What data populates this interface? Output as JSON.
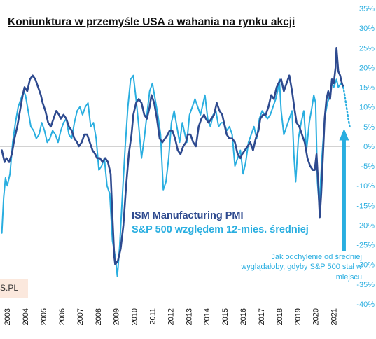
{
  "title": "Koniunktura w przemyśle USA a wahania na rynku akcji",
  "legend": {
    "ism": "ISM Manufacturing  PMI",
    "sp": "S&P 500 względem 12-mies. średniej"
  },
  "annotation": "Jak odchylenie od średniej wyglądałoby, gdyby S&P 500 stał w miejscu",
  "brand_text": "S.PL",
  "colors": {
    "ism": "#2e4a8f",
    "sp": "#29aee0",
    "annotation": "#29aee0"
  },
  "chart_data": {
    "type": "line",
    "x_start": 2002.75,
    "x_end": 2021.95,
    "x_ticks": [
      "2003",
      "2004",
      "2005",
      "2006",
      "2007",
      "2008",
      "2009",
      "2010",
      "2011",
      "2012",
      "2013",
      "2014",
      "2015",
      "2016",
      "2017",
      "2018",
      "2019",
      "2020",
      "2021"
    ],
    "y_right": {
      "ylim": [
        -40,
        35
      ],
      "ticks": [
        "35%",
        "30%",
        "25%",
        "20%",
        "15%",
        "10%",
        "5%",
        "0%",
        "-5%",
        "-10%",
        "-15%",
        "-20%",
        "-25%",
        "-30%",
        "-35%",
        "-40%"
      ]
    },
    "zero_line": 0,
    "series": [
      {
        "name": "ISM Manufacturing  PMI",
        "axis": "right_equivalent",
        "points": [
          [
            2002.75,
            -1
          ],
          [
            2002.9,
            -4
          ],
          [
            2003.0,
            -3
          ],
          [
            2003.15,
            -4
          ],
          [
            2003.3,
            -2
          ],
          [
            2003.45,
            2
          ],
          [
            2003.6,
            5
          ],
          [
            2003.75,
            9
          ],
          [
            2003.9,
            13
          ],
          [
            2004.0,
            15
          ],
          [
            2004.15,
            14
          ],
          [
            2004.3,
            17
          ],
          [
            2004.45,
            18
          ],
          [
            2004.6,
            17
          ],
          [
            2004.75,
            15
          ],
          [
            2004.9,
            13
          ],
          [
            2005.0,
            11
          ],
          [
            2005.15,
            9
          ],
          [
            2005.3,
            6
          ],
          [
            2005.45,
            5
          ],
          [
            2005.6,
            7
          ],
          [
            2005.75,
            9
          ],
          [
            2005.9,
            8
          ],
          [
            2006.0,
            7
          ],
          [
            2006.15,
            8
          ],
          [
            2006.3,
            7
          ],
          [
            2006.45,
            5
          ],
          [
            2006.6,
            4
          ],
          [
            2006.75,
            2
          ],
          [
            2006.9,
            1
          ],
          [
            2007.0,
            0
          ],
          [
            2007.15,
            1
          ],
          [
            2007.3,
            3
          ],
          [
            2007.45,
            3
          ],
          [
            2007.6,
            1
          ],
          [
            2007.75,
            -1
          ],
          [
            2007.9,
            -2
          ],
          [
            2008.0,
            -3
          ],
          [
            2008.15,
            -3
          ],
          [
            2008.3,
            -4
          ],
          [
            2008.45,
            -3
          ],
          [
            2008.6,
            -4
          ],
          [
            2008.75,
            -7
          ],
          [
            2008.85,
            -18
          ],
          [
            2008.95,
            -28
          ],
          [
            2009.0,
            -30
          ],
          [
            2009.15,
            -29
          ],
          [
            2009.3,
            -26
          ],
          [
            2009.45,
            -20
          ],
          [
            2009.6,
            -10
          ],
          [
            2009.75,
            -2
          ],
          [
            2009.9,
            3
          ],
          [
            2010.0,
            8
          ],
          [
            2010.15,
            11
          ],
          [
            2010.3,
            12
          ],
          [
            2010.45,
            11
          ],
          [
            2010.6,
            8
          ],
          [
            2010.75,
            7
          ],
          [
            2010.9,
            10
          ],
          [
            2011.0,
            13
          ],
          [
            2011.15,
            11
          ],
          [
            2011.3,
            7
          ],
          [
            2011.45,
            2
          ],
          [
            2011.6,
            1
          ],
          [
            2011.75,
            2
          ],
          [
            2011.9,
            3
          ],
          [
            2012.0,
            4
          ],
          [
            2012.15,
            4
          ],
          [
            2012.3,
            2
          ],
          [
            2012.45,
            -1
          ],
          [
            2012.6,
            -2
          ],
          [
            2012.75,
            0
          ],
          [
            2012.9,
            1
          ],
          [
            2013.0,
            3
          ],
          [
            2013.15,
            3
          ],
          [
            2013.3,
            1
          ],
          [
            2013.45,
            0
          ],
          [
            2013.6,
            5
          ],
          [
            2013.75,
            7
          ],
          [
            2013.9,
            8
          ],
          [
            2014.0,
            7
          ],
          [
            2014.15,
            6
          ],
          [
            2014.3,
            7
          ],
          [
            2014.45,
            8
          ],
          [
            2014.6,
            11
          ],
          [
            2014.75,
            9
          ],
          [
            2014.9,
            8
          ],
          [
            2015.0,
            6
          ],
          [
            2015.15,
            3
          ],
          [
            2015.3,
            2
          ],
          [
            2015.45,
            2
          ],
          [
            2015.6,
            1
          ],
          [
            2015.75,
            -2
          ],
          [
            2015.9,
            -3
          ],
          [
            2016.0,
            -2
          ],
          [
            2016.15,
            -1
          ],
          [
            2016.3,
            0
          ],
          [
            2016.45,
            1
          ],
          [
            2016.6,
            -1
          ],
          [
            2016.75,
            2
          ],
          [
            2016.9,
            4
          ],
          [
            2017.0,
            7
          ],
          [
            2017.15,
            8
          ],
          [
            2017.3,
            8
          ],
          [
            2017.45,
            10
          ],
          [
            2017.6,
            13
          ],
          [
            2017.75,
            12
          ],
          [
            2017.9,
            15
          ],
          [
            2018.0,
            16
          ],
          [
            2018.15,
            17
          ],
          [
            2018.3,
            14
          ],
          [
            2018.45,
            16
          ],
          [
            2018.6,
            18
          ],
          [
            2018.75,
            14
          ],
          [
            2018.9,
            9
          ],
          [
            2019.0,
            6
          ],
          [
            2019.15,
            5
          ],
          [
            2019.3,
            3
          ],
          [
            2019.45,
            1
          ],
          [
            2019.6,
            -3
          ],
          [
            2019.75,
            -5
          ],
          [
            2019.9,
            -6
          ],
          [
            2020.0,
            -6
          ],
          [
            2020.1,
            -2
          ],
          [
            2020.2,
            -10
          ],
          [
            2020.28,
            -18
          ],
          [
            2020.36,
            -12
          ],
          [
            2020.45,
            -3
          ],
          [
            2020.55,
            7
          ],
          [
            2020.65,
            12
          ],
          [
            2020.75,
            14
          ],
          [
            2020.85,
            12
          ],
          [
            2020.95,
            17
          ],
          [
            2021.05,
            16
          ],
          [
            2021.15,
            20
          ],
          [
            2021.2,
            25
          ],
          [
            2021.3,
            19
          ],
          [
            2021.4,
            18
          ],
          [
            2021.5,
            16
          ],
          [
            2021.58,
            15
          ]
        ]
      },
      {
        "name": "S&P 500 względem 12-mies. średniej",
        "axis": "right",
        "points": [
          [
            2002.75,
            -22
          ],
          [
            2002.85,
            -13
          ],
          [
            2002.95,
            -8
          ],
          [
            2003.05,
            -10
          ],
          [
            2003.2,
            -7
          ],
          [
            2003.35,
            1
          ],
          [
            2003.5,
            6
          ],
          [
            2003.65,
            10
          ],
          [
            2003.8,
            12
          ],
          [
            2003.95,
            14
          ],
          [
            2004.05,
            13
          ],
          [
            2004.2,
            9
          ],
          [
            2004.35,
            5
          ],
          [
            2004.5,
            4
          ],
          [
            2004.65,
            2
          ],
          [
            2004.8,
            3
          ],
          [
            2004.95,
            6
          ],
          [
            2005.1,
            4
          ],
          [
            2005.25,
            1
          ],
          [
            2005.4,
            2
          ],
          [
            2005.55,
            4
          ],
          [
            2005.7,
            3
          ],
          [
            2005.85,
            1
          ],
          [
            2006.0,
            4
          ],
          [
            2006.15,
            6
          ],
          [
            2006.3,
            7
          ],
          [
            2006.45,
            3
          ],
          [
            2006.6,
            2
          ],
          [
            2006.75,
            6
          ],
          [
            2006.9,
            9
          ],
          [
            2007.05,
            10
          ],
          [
            2007.2,
            8
          ],
          [
            2007.35,
            10
          ],
          [
            2007.5,
            11
          ],
          [
            2007.65,
            5
          ],
          [
            2007.8,
            6
          ],
          [
            2007.95,
            2
          ],
          [
            2008.1,
            -6
          ],
          [
            2008.25,
            -5
          ],
          [
            2008.4,
            -3
          ],
          [
            2008.55,
            -10
          ],
          [
            2008.7,
            -12
          ],
          [
            2008.85,
            -24
          ],
          [
            2009.0,
            -28
          ],
          [
            2009.12,
            -33
          ],
          [
            2009.25,
            -25
          ],
          [
            2009.4,
            -12
          ],
          [
            2009.55,
            0
          ],
          [
            2009.7,
            10
          ],
          [
            2009.85,
            17
          ],
          [
            2010.0,
            18
          ],
          [
            2010.15,
            12
          ],
          [
            2010.3,
            5
          ],
          [
            2010.45,
            -3
          ],
          [
            2010.6,
            2
          ],
          [
            2010.75,
            8
          ],
          [
            2010.9,
            14
          ],
          [
            2011.05,
            16
          ],
          [
            2011.2,
            12
          ],
          [
            2011.35,
            8
          ],
          [
            2011.5,
            3
          ],
          [
            2011.65,
            -11
          ],
          [
            2011.8,
            -9
          ],
          [
            2011.95,
            -3
          ],
          [
            2012.1,
            6
          ],
          [
            2012.25,
            9
          ],
          [
            2012.4,
            5
          ],
          [
            2012.55,
            1
          ],
          [
            2012.7,
            6
          ],
          [
            2012.85,
            3
          ],
          [
            2012.95,
            1
          ],
          [
            2013.1,
            8
          ],
          [
            2013.25,
            10
          ],
          [
            2013.4,
            12
          ],
          [
            2013.55,
            10
          ],
          [
            2013.7,
            8
          ],
          [
            2013.85,
            11
          ],
          [
            2013.95,
            13
          ],
          [
            2014.1,
            7
          ],
          [
            2014.25,
            5
          ],
          [
            2014.4,
            8
          ],
          [
            2014.55,
            9
          ],
          [
            2014.7,
            5
          ],
          [
            2014.85,
            6
          ],
          [
            2015.0,
            6
          ],
          [
            2015.15,
            4
          ],
          [
            2015.3,
            5
          ],
          [
            2015.45,
            3
          ],
          [
            2015.6,
            -5
          ],
          [
            2015.75,
            -3
          ],
          [
            2015.9,
            -1
          ],
          [
            2016.05,
            -7
          ],
          [
            2016.2,
            -4
          ],
          [
            2016.35,
            1
          ],
          [
            2016.5,
            3
          ],
          [
            2016.65,
            5
          ],
          [
            2016.8,
            2
          ],
          [
            2016.95,
            7
          ],
          [
            2017.1,
            9
          ],
          [
            2017.25,
            8
          ],
          [
            2017.4,
            7
          ],
          [
            2017.55,
            8
          ],
          [
            2017.7,
            10
          ],
          [
            2017.85,
            12
          ],
          [
            2017.95,
            14
          ],
          [
            2018.05,
            17
          ],
          [
            2018.15,
            9
          ],
          [
            2018.3,
            3
          ],
          [
            2018.45,
            5
          ],
          [
            2018.6,
            7
          ],
          [
            2018.75,
            9
          ],
          [
            2018.85,
            -2
          ],
          [
            2018.95,
            -9
          ],
          [
            2019.1,
            2
          ],
          [
            2019.25,
            6
          ],
          [
            2019.4,
            9
          ],
          [
            2019.55,
            -1
          ],
          [
            2019.7,
            6
          ],
          [
            2019.85,
            10
          ],
          [
            2019.95,
            13
          ],
          [
            2020.05,
            11
          ],
          [
            2020.15,
            -9
          ],
          [
            2020.25,
            -15
          ],
          [
            2020.4,
            -3
          ],
          [
            2020.55,
            7
          ],
          [
            2020.7,
            11
          ],
          [
            2020.85,
            13
          ],
          [
            2020.95,
            16
          ],
          [
            2021.05,
            15
          ],
          [
            2021.2,
            17
          ],
          [
            2021.3,
            15
          ],
          [
            2021.45,
            16
          ],
          [
            2021.58,
            15
          ]
        ]
      },
      {
        "name": "projection",
        "axis": "right",
        "style": "dotted",
        "points": [
          [
            2021.58,
            15
          ],
          [
            2021.72,
            11
          ],
          [
            2021.85,
            7
          ],
          [
            2021.93,
            5
          ]
        ]
      }
    ]
  }
}
